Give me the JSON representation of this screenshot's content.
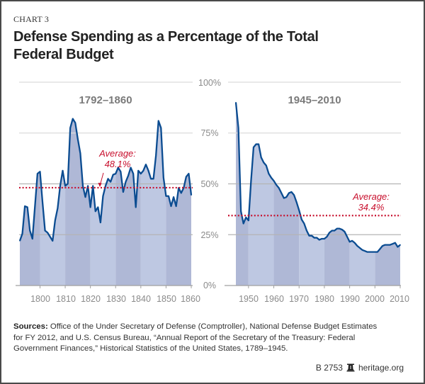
{
  "header": {
    "kicker": "CHART 3",
    "title_line1": "Defense Spending as a Percentage of the Total",
    "title_line2": "Federal Budget"
  },
  "colors": {
    "line": "#0b4c91",
    "fill_dark": "#afb8d6",
    "fill_light": "#bec8e2",
    "average": "#c8102e",
    "grid": "#c8c8c8",
    "tick_text": "#8a8a8a",
    "panel_title": "#7a7a7a"
  },
  "chart_data": [
    {
      "type": "area",
      "title": "1792–1860",
      "xlabel": "",
      "ylabel": "",
      "xlim": [
        1792,
        1860
      ],
      "ylim": [
        0,
        100
      ],
      "x_ticks": [
        "1800",
        "1810",
        "1820",
        "1830",
        "1840",
        "1850",
        "1860"
      ],
      "y_ticks": [
        "100%",
        "75%",
        "50%",
        "25%",
        "0%"
      ],
      "average_label": "Average:",
      "average_value_label": "48.1%",
      "average": 48.1,
      "x": [
        1792,
        1793,
        1794,
        1795,
        1796,
        1797,
        1798,
        1799,
        1800,
        1801,
        1802,
        1803,
        1804,
        1805,
        1806,
        1807,
        1808,
        1809,
        1810,
        1811,
        1812,
        1813,
        1814,
        1815,
        1816,
        1817,
        1818,
        1819,
        1820,
        1821,
        1822,
        1823,
        1824,
        1825,
        1826,
        1827,
        1828,
        1829,
        1830,
        1831,
        1832,
        1833,
        1834,
        1835,
        1836,
        1837,
        1838,
        1839,
        1840,
        1841,
        1842,
        1843,
        1844,
        1845,
        1846,
        1847,
        1848,
        1849,
        1850,
        1851,
        1852,
        1853,
        1854,
        1855,
        1856,
        1857,
        1858,
        1859,
        1860
      ],
      "values": [
        22,
        25.5,
        39,
        38.5,
        27,
        23,
        39,
        55,
        56,
        41,
        27,
        26,
        24,
        22,
        32,
        38,
        49,
        56.5,
        49,
        50,
        77.5,
        82,
        80,
        72,
        65,
        49,
        43.5,
        49,
        38.5,
        49,
        36.5,
        38.5,
        31,
        44,
        49,
        52.5,
        51,
        54.5,
        55,
        58,
        56,
        46,
        51,
        54,
        58,
        55,
        38.5,
        56.5,
        55,
        56.5,
        59.5,
        56.5,
        52.5,
        52.5,
        64,
        81,
        77.5,
        53,
        44,
        44,
        39,
        43.5,
        39,
        48,
        45.5,
        48,
        53.5,
        55,
        44.5
      ]
    },
    {
      "type": "area",
      "title": "1945–2010",
      "xlabel": "",
      "ylabel": "",
      "xlim": [
        1945,
        2010
      ],
      "ylim": [
        0,
        100
      ],
      "x_ticks": [
        "1950",
        "1960",
        "1970",
        "1980",
        "1990",
        "2000",
        "2010"
      ],
      "y_ticks": [
        "100%",
        "75%",
        "50%",
        "25%",
        "0%"
      ],
      "average_label": "Average:",
      "average_value_label": "34.4%",
      "average": 34.4,
      "x": [
        1945,
        1946,
        1947,
        1948,
        1949,
        1950,
        1951,
        1952,
        1953,
        1954,
        1955,
        1956,
        1957,
        1958,
        1959,
        1960,
        1961,
        1962,
        1963,
        1964,
        1965,
        1966,
        1967,
        1968,
        1969,
        1970,
        1971,
        1972,
        1973,
        1974,
        1975,
        1976,
        1977,
        1978,
        1979,
        1980,
        1981,
        1982,
        1983,
        1984,
        1985,
        1986,
        1987,
        1988,
        1989,
        1990,
        1991,
        1992,
        1993,
        1994,
        1995,
        1996,
        1997,
        1998,
        1999,
        2000,
        2001,
        2002,
        2003,
        2004,
        2005,
        2006,
        2007,
        2008,
        2009,
        2010
      ],
      "values": [
        90,
        77.5,
        36.5,
        30.5,
        33.5,
        32,
        51.5,
        68,
        69.5,
        69.5,
        63,
        60.5,
        59,
        55,
        53,
        51.5,
        49.5,
        48,
        45.5,
        43,
        43.5,
        45.5,
        46,
        44.5,
        41,
        37,
        32.5,
        30.5,
        27,
        24.5,
        24.5,
        23.5,
        23.5,
        22.5,
        23,
        23,
        24,
        26,
        27,
        27,
        28,
        28,
        27.5,
        26.5,
        24,
        21.5,
        22,
        21,
        19.5,
        18.5,
        17.5,
        17,
        16.5,
        16.5,
        16.5,
        16.5,
        16.5,
        18,
        19.5,
        20,
        20,
        20,
        20.5,
        21,
        19,
        20
      ]
    }
  ],
  "footer": {
    "sources_label": "Sources:",
    "sources_line1": " Office of the Under Secretary of Defense (Comptroller), National Defense Budget Estimates",
    "sources_line2": "for FY 2012, and U.S. Census Bureau, “Annual Report of the Secretary of the Treasury: Federal",
    "sources_line3": "Government Finances,” Historical Statistics of the United States, 1789–1945.",
    "code": "B 2753",
    "logo_icon": "liberty-bell-icon",
    "site": "heritage.org"
  }
}
